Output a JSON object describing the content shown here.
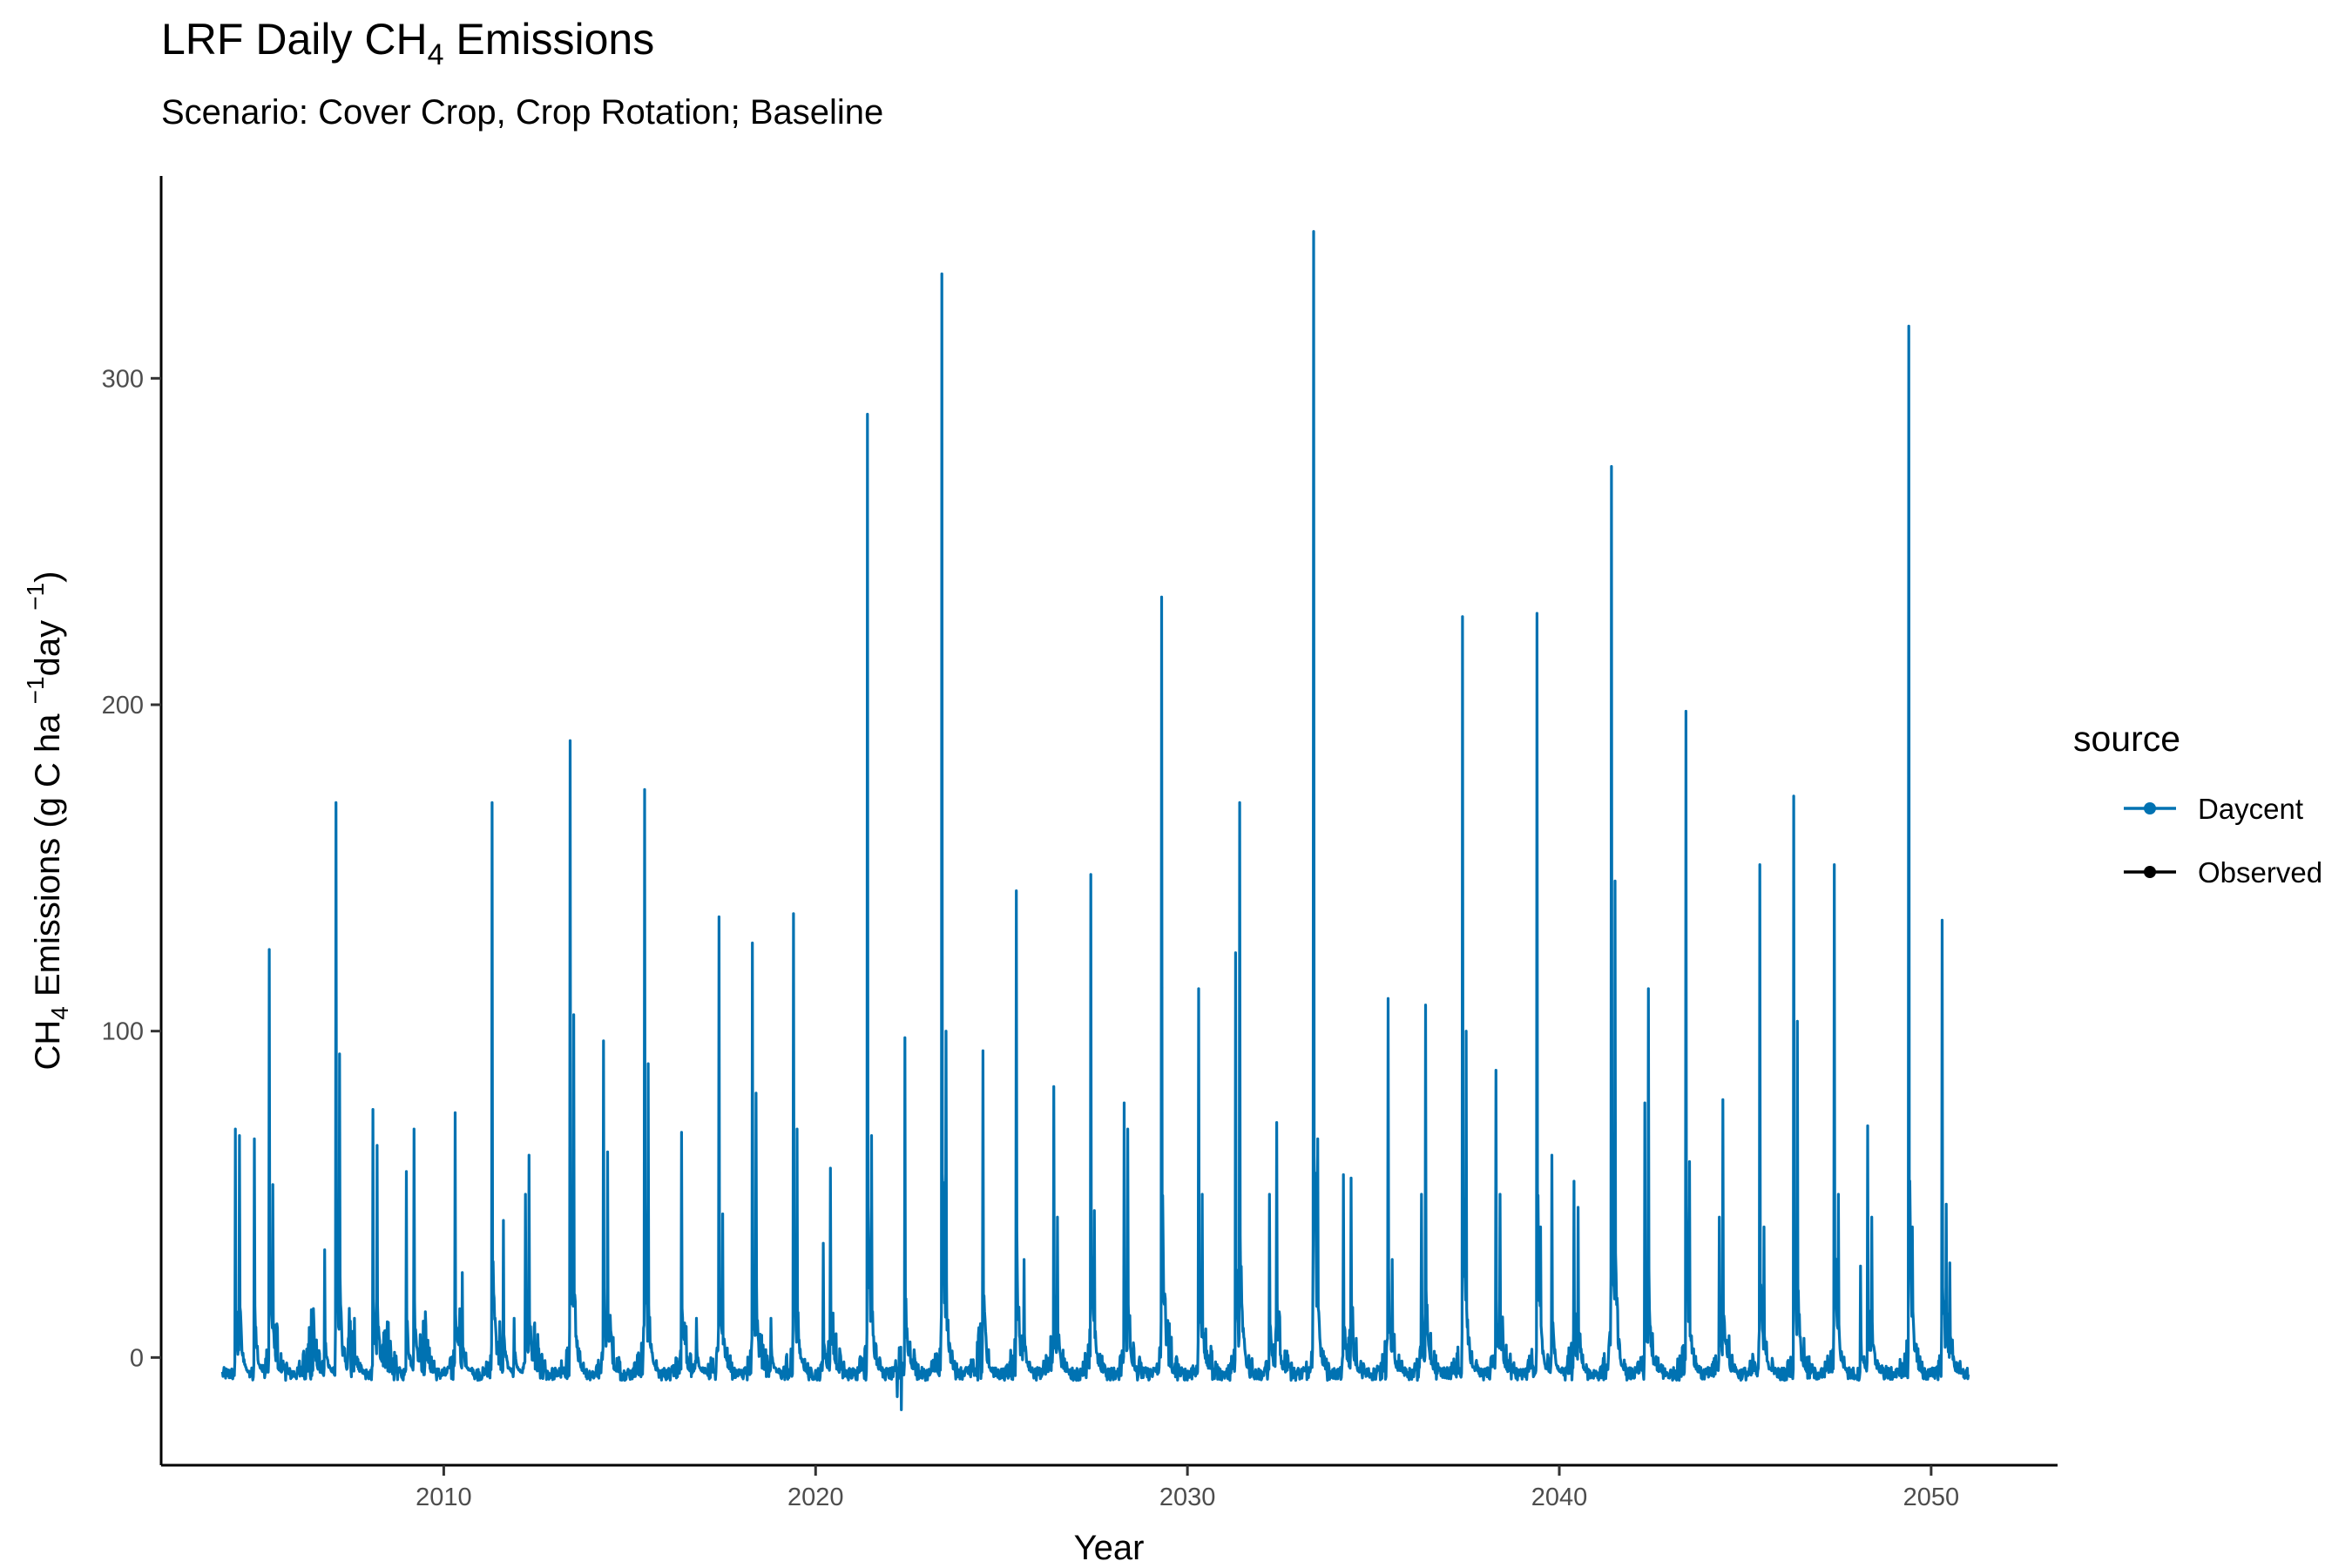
{
  "chart_data": {
    "type": "line",
    "title_main": "LRF Daily CH",
    "title_sub": "4",
    "title_tail": " Emissions",
    "subtitle": "Scenario: Cover Crop, Crop Rotation; Baseline",
    "xlabel": "Year",
    "ylabel_parts": {
      "a": "CH",
      "b": "4",
      "c": " Emissions (g C ha ",
      "d": "−1",
      "e": "day ",
      "f": "−1",
      "g": ")"
    },
    "xlim": [
      2002.4,
      2053.4
    ],
    "ylim": [
      -33,
      362
    ],
    "x_ticks": [
      2010,
      2020,
      2030,
      2040,
      2050
    ],
    "x_tick_labels": [
      "2010",
      "2020",
      "2030",
      "2040",
      "2050"
    ],
    "y_ticks": [
      0,
      100,
      200,
      300
    ],
    "y_tick_labels": [
      "0",
      "100",
      "200",
      "300"
    ],
    "grid": false,
    "legend": {
      "title": "source",
      "placement": "right",
      "entries": [
        {
          "name": "Daycent",
          "color": "#0072B2"
        },
        {
          "name": "Observed",
          "color": "#000000"
        }
      ]
    },
    "series": [
      {
        "name": "Daycent",
        "color": "#0072B2",
        "baseline": -5,
        "x_start": 2004.05,
        "x_end": 2051.0,
        "peaks": [
          [
            2004.4,
            70
          ],
          [
            2004.5,
            68
          ],
          [
            2004.9,
            67
          ],
          [
            2005.3,
            125
          ],
          [
            2005.4,
            53
          ],
          [
            2006.5,
            15
          ],
          [
            2006.8,
            33
          ],
          [
            2007.1,
            170
          ],
          [
            2007.2,
            93
          ],
          [
            2007.6,
            12
          ],
          [
            2008.1,
            76
          ],
          [
            2008.2,
            65
          ],
          [
            2009.0,
            57
          ],
          [
            2009.2,
            70
          ],
          [
            2009.5,
            14
          ],
          [
            2010.3,
            75
          ],
          [
            2010.5,
            26
          ],
          [
            2011.3,
            170
          ],
          [
            2011.6,
            42
          ],
          [
            2011.9,
            12
          ],
          [
            2012.3,
            62
          ],
          [
            2012.2,
            50
          ],
          [
            2013.4,
            189
          ],
          [
            2013.5,
            105
          ],
          [
            2014.3,
            97
          ],
          [
            2014.4,
            63
          ],
          [
            2015.4,
            174
          ],
          [
            2015.5,
            90
          ],
          [
            2016.4,
            69
          ],
          [
            2016.8,
            12
          ],
          [
            2017.4,
            135
          ],
          [
            2017.5,
            44
          ],
          [
            2018.3,
            127
          ],
          [
            2018.4,
            81
          ],
          [
            2018.8,
            12
          ],
          [
            2019.4,
            136
          ],
          [
            2019.5,
            70
          ],
          [
            2020.2,
            35
          ],
          [
            2020.4,
            58
          ],
          [
            2021.4,
            289
          ],
          [
            2021.5,
            68
          ],
          [
            2022.4,
            98
          ],
          [
            2023.4,
            332
          ],
          [
            2023.5,
            100
          ],
          [
            2024.5,
            94
          ],
          [
            2025.4,
            143
          ],
          [
            2025.6,
            30
          ],
          [
            2026.4,
            83
          ],
          [
            2026.5,
            43
          ],
          [
            2027.4,
            148
          ],
          [
            2027.5,
            45
          ],
          [
            2028.3,
            78
          ],
          [
            2028.4,
            70
          ],
          [
            2029.3,
            233
          ],
          [
            2029.4,
            18
          ],
          [
            2030.3,
            113
          ],
          [
            2030.4,
            50
          ],
          [
            2031.4,
            170
          ],
          [
            2031.3,
            124
          ],
          [
            2032.2,
            50
          ],
          [
            2032.4,
            72
          ],
          [
            2033.4,
            345
          ],
          [
            2033.5,
            67
          ],
          [
            2034.2,
            56
          ],
          [
            2034.4,
            55
          ],
          [
            2035.4,
            110
          ],
          [
            2035.5,
            30
          ],
          [
            2036.4,
            108
          ],
          [
            2036.3,
            50
          ],
          [
            2037.4,
            227
          ],
          [
            2037.5,
            100
          ],
          [
            2038.3,
            88
          ],
          [
            2038.4,
            50
          ],
          [
            2039.4,
            228
          ],
          [
            2039.5,
            40
          ],
          [
            2039.8,
            62
          ],
          [
            2040.4,
            54
          ],
          [
            2040.5,
            46
          ],
          [
            2041.4,
            273
          ],
          [
            2041.5,
            146
          ],
          [
            2042.4,
            113
          ],
          [
            2042.3,
            78
          ],
          [
            2043.4,
            198
          ],
          [
            2043.5,
            60
          ],
          [
            2044.4,
            79
          ],
          [
            2044.3,
            43
          ],
          [
            2045.4,
            151
          ],
          [
            2045.5,
            40
          ],
          [
            2046.3,
            172
          ],
          [
            2046.4,
            103
          ],
          [
            2047.4,
            151
          ],
          [
            2047.5,
            50
          ],
          [
            2048.1,
            28
          ],
          [
            2048.3,
            71
          ],
          [
            2048.4,
            43
          ],
          [
            2049.4,
            316
          ],
          [
            2049.5,
            40
          ],
          [
            2050.3,
            134
          ],
          [
            2050.4,
            47
          ],
          [
            2050.5,
            29
          ]
        ],
        "dips": [
          [
            2022.3,
            -16
          ],
          [
            2022.2,
            -12
          ]
        ]
      }
    ]
  }
}
